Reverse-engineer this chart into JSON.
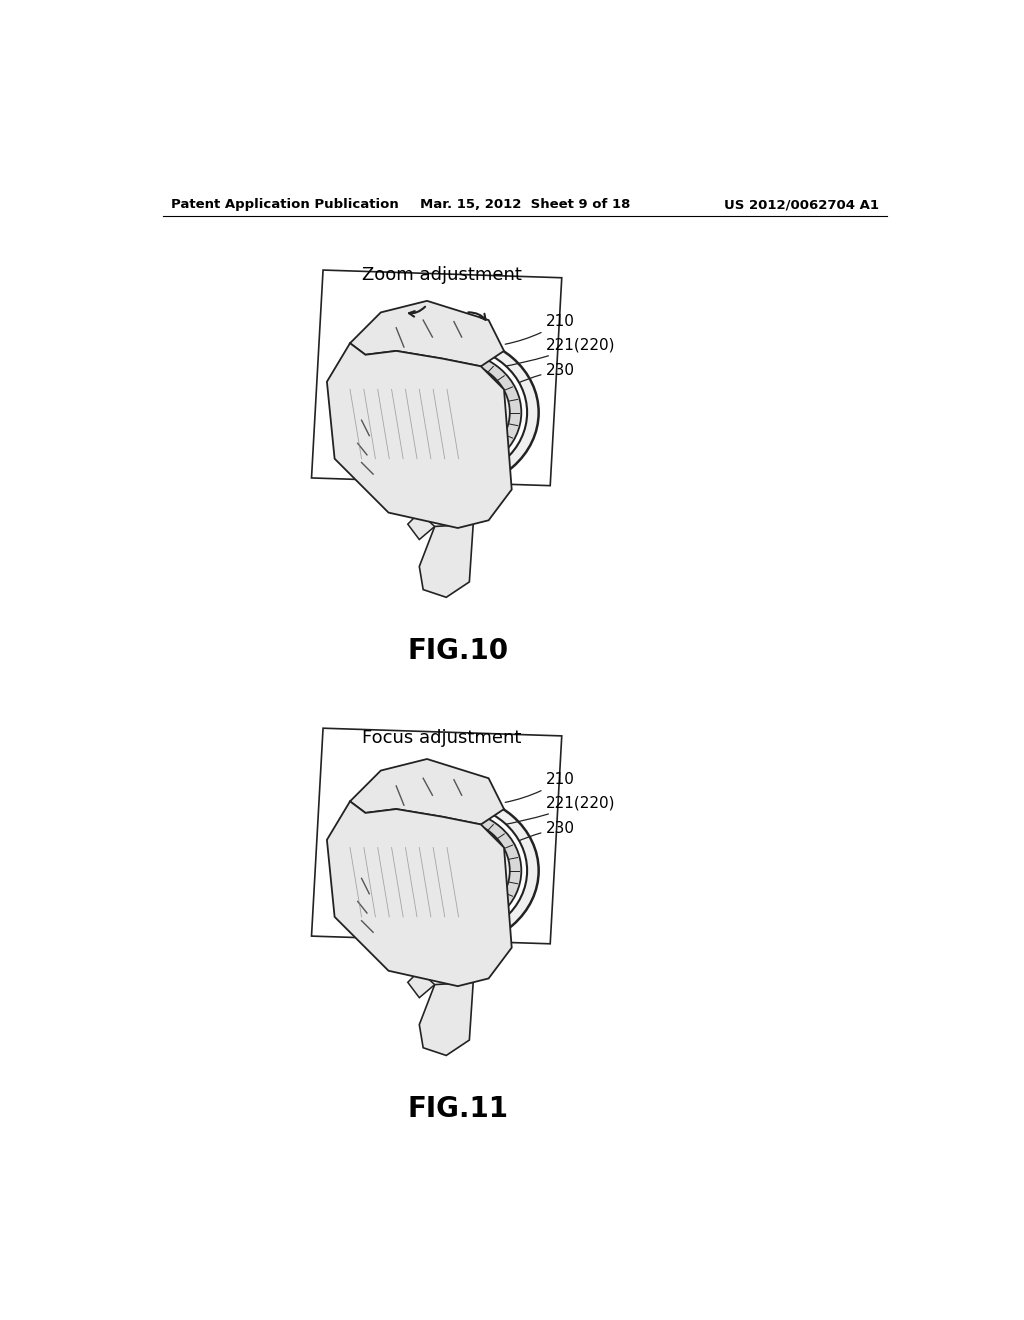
{
  "background_color": "#ffffff",
  "header_left": "Patent Application Publication",
  "header_middle": "Mar. 15, 2012  Sheet 9 of 18",
  "header_right": "US 2012/0062704 A1",
  "fig10_title": "Zoom adjustment",
  "fig10_label": "FIG.10",
  "fig11_title": "Focus adjustment",
  "fig11_label": "FIG.11",
  "label_210": "210",
  "label_221": "221(220)",
  "label_230": "230",
  "header_fontsize": 9.5,
  "title_fontsize": 13,
  "figlabel_fontsize": 20,
  "annotation_fontsize": 11,
  "line_color": "#222222",
  "fill_light": "#f0f0f0",
  "fill_mid": "#d8d8d8",
  "fill_dark": "#b0b0b0",
  "skin_color": "#e8e8e8"
}
